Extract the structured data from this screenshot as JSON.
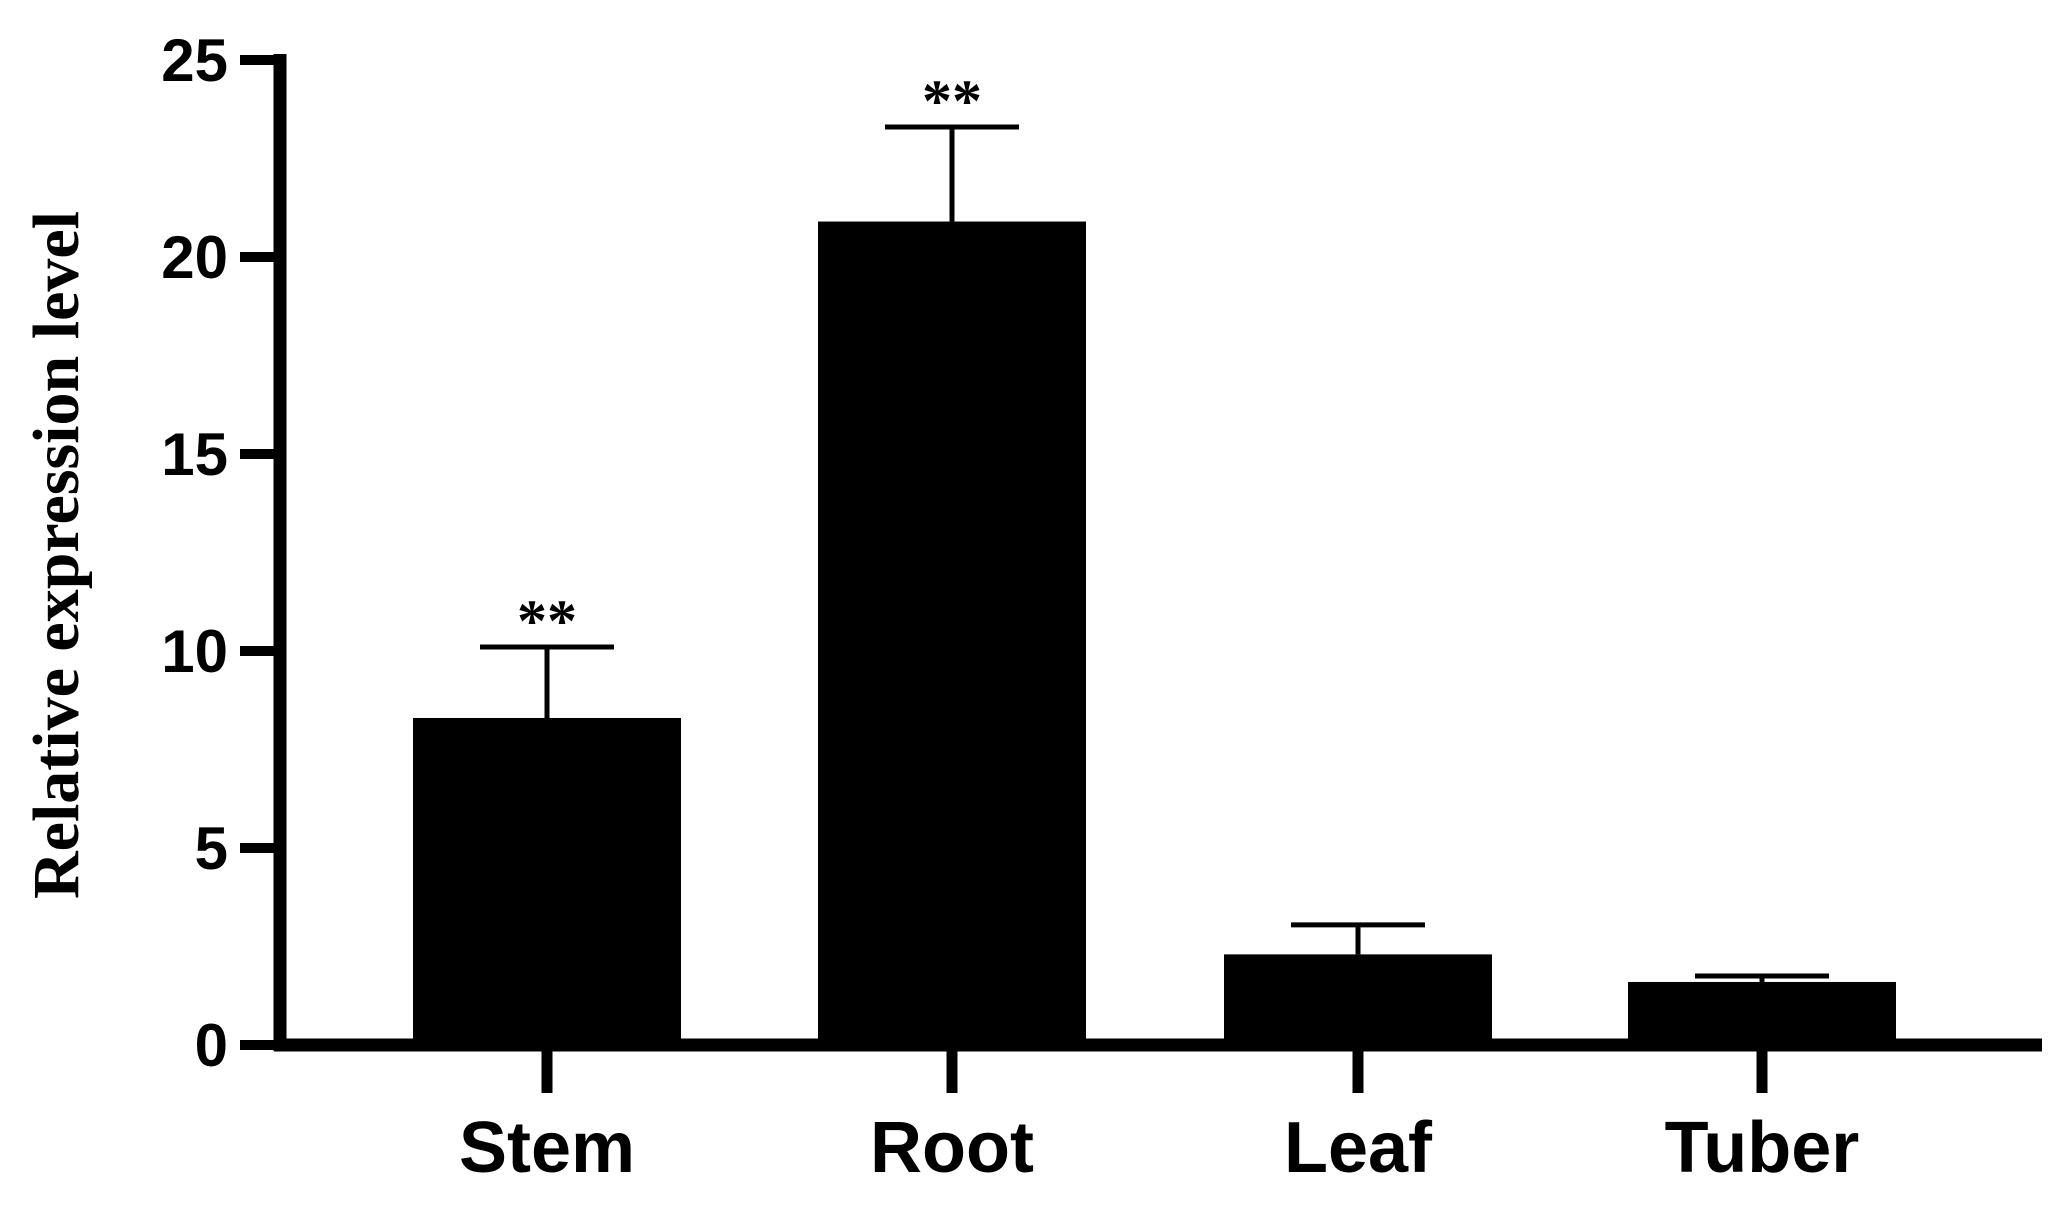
{
  "chart_data": {
    "type": "bar",
    "categories": [
      "Stem",
      "Root",
      "Leaf",
      "Tuber"
    ],
    "values": [
      8.3,
      20.9,
      2.3,
      1.6
    ],
    "error_upper": [
      10.1,
      23.3,
      3.05,
      1.75
    ],
    "annotations": [
      "**",
      "**",
      "",
      ""
    ],
    "ylabel": "Relative expression level",
    "xlabel": "",
    "ylim": [
      0,
      25
    ],
    "yticks": [
      0,
      5,
      10,
      15,
      20,
      25
    ],
    "grid": false,
    "bar_color": "#000000"
  }
}
